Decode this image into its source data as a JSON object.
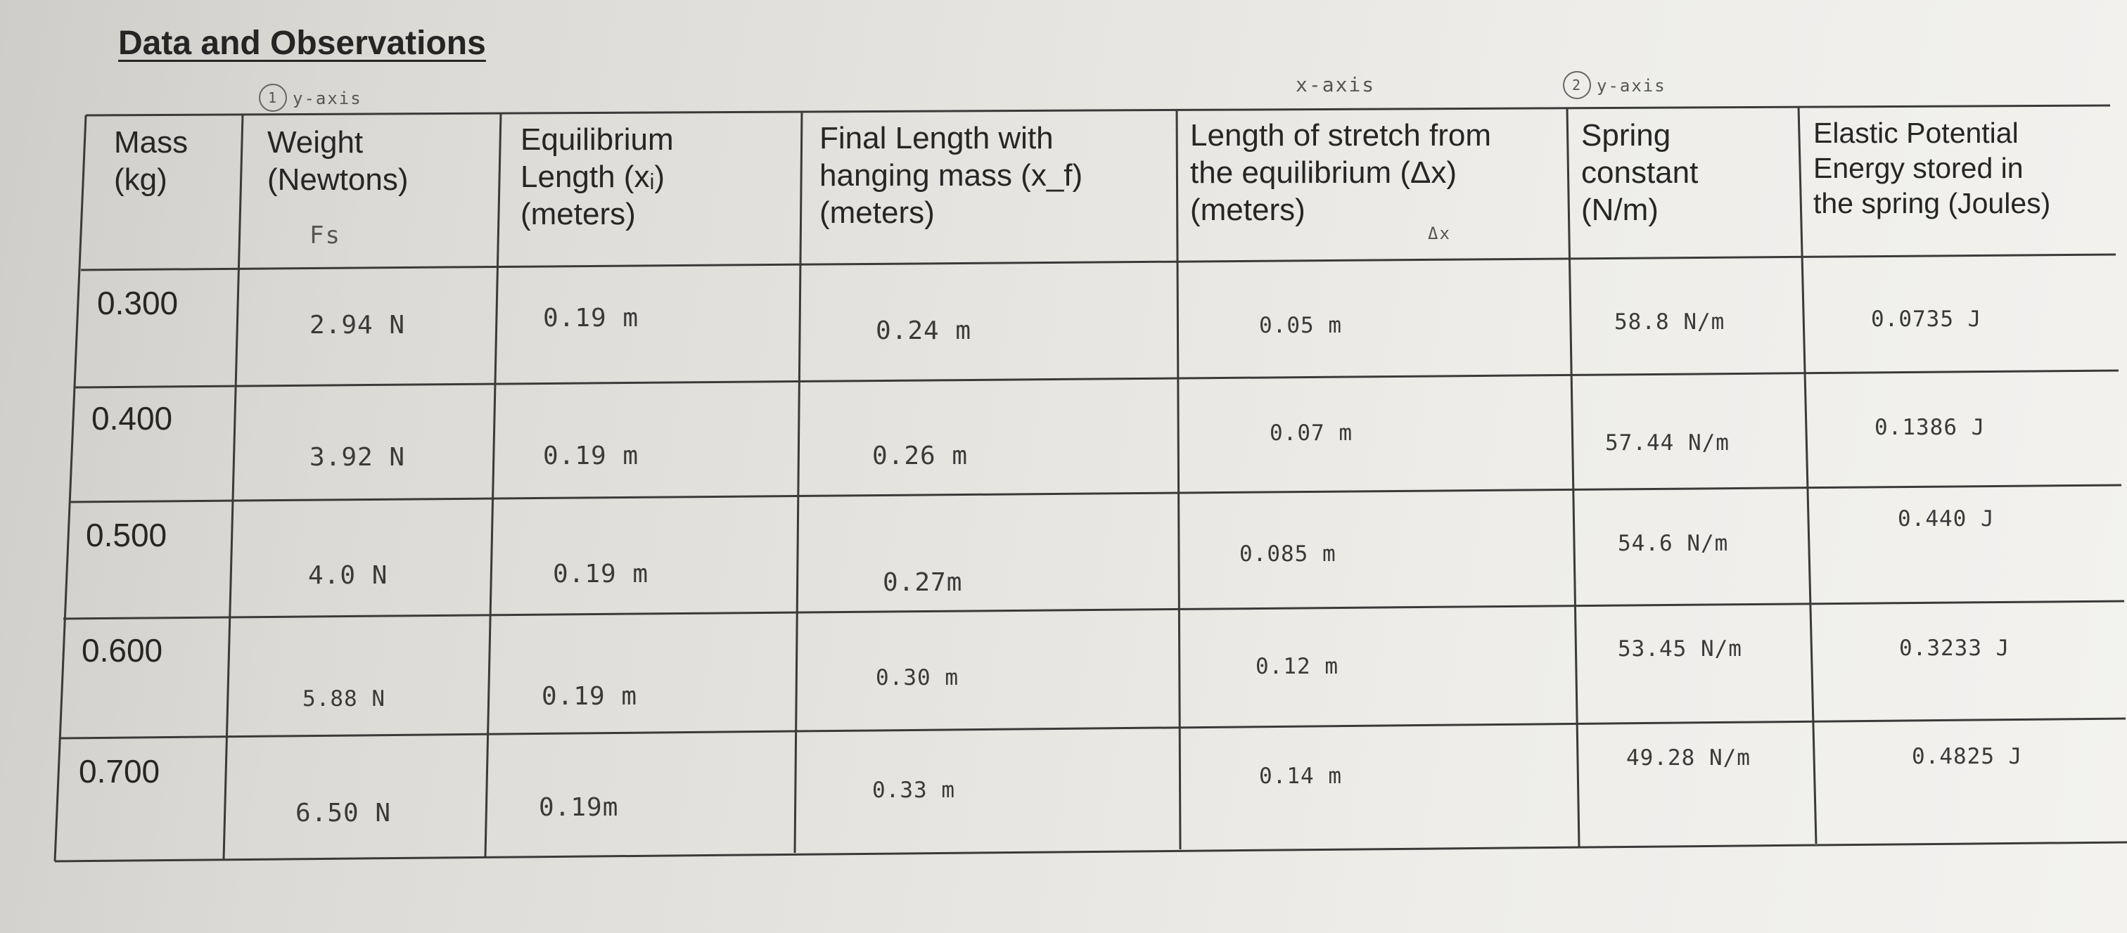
{
  "heading": "Data and Observations",
  "annotations": {
    "weight_axis_num": "1",
    "weight_axis": "y-axis",
    "stretch_axis": "x-axis",
    "spring_axis_num": "2",
    "spring_axis": "y-axis",
    "weight_symbol": "Fs",
    "stretch_symbol": "Δx"
  },
  "table": {
    "headers": [
      "Mass\n(kg)",
      "Weight\n(Newtons)",
      "Equilibrium\nLength (xᵢ)\n(meters)",
      "Final Length with\nhanging mass (x_f)\n(meters)",
      "Length of stretch from\nthe equilibrium  (Δx)\n(meters)",
      "Spring\nconstant\n(N/m)",
      "Elastic Potential\nEnergy stored in\nthe spring (Joules)"
    ],
    "rows": [
      {
        "mass": "0.300",
        "weight": "2.94 N",
        "equilibrium": "0.19 m",
        "final": "0.24 m",
        "stretch": "0.05 m",
        "spring": "58.8 N/m",
        "energy": "0.0735 J"
      },
      {
        "mass": "0.400",
        "weight": "3.92 N",
        "equilibrium": "0.19 m",
        "final": "0.26 m",
        "stretch": "0.07 m",
        "spring": "57.44 N/m",
        "energy": "0.1386 J"
      },
      {
        "mass": "0.500",
        "weight": "4.0 N",
        "equilibrium": "0.19 m",
        "final": "0.27m",
        "stretch": "0.085 m",
        "spring": "54.6 N/m",
        "energy": "0.440 J"
      },
      {
        "mass": "0.600",
        "weight": "5.88 N",
        "equilibrium": "0.19 m",
        "final": "0.30 m",
        "stretch": "0.12 m",
        "spring": "53.45 N/m",
        "energy": "0.3233 J"
      },
      {
        "mass": "0.700",
        "weight": "6.50 N",
        "equilibrium": "0.19m",
        "final": "0.33 m",
        "stretch": "0.14 m",
        "spring": "49.28 N/m",
        "energy": "0.4825 J"
      }
    ]
  }
}
